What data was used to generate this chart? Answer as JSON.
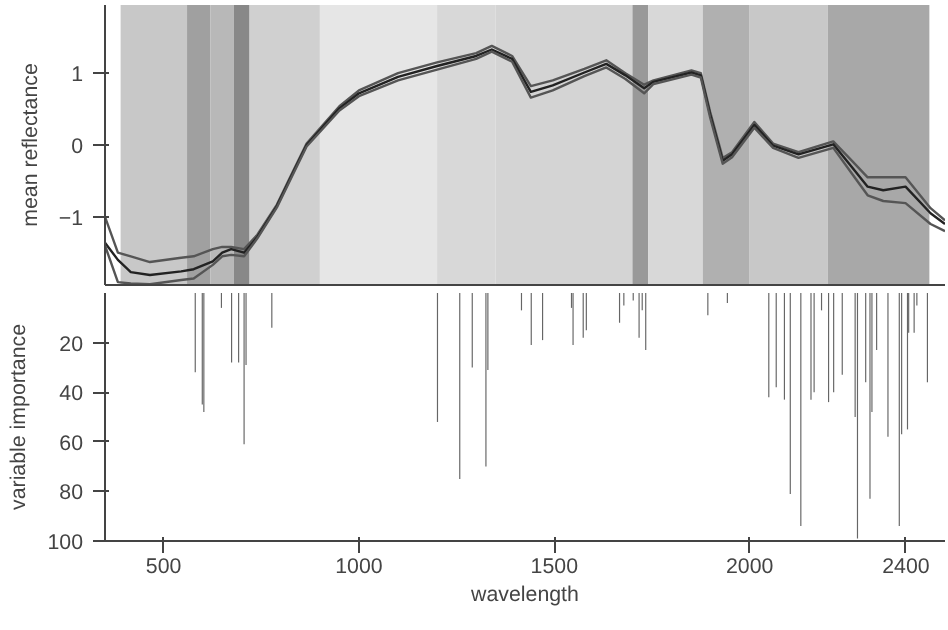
{
  "chart_data": [
    {
      "type": "line",
      "ylabel": "mean reflectance",
      "xlim": [
        350,
        2500
      ],
      "ylim": [
        -1.95,
        1.95
      ],
      "yticks": [
        -1,
        0,
        1
      ],
      "tick_labels": "y",
      "grid": false,
      "x": [
        350,
        383,
        416,
        465,
        545,
        577,
        626,
        650,
        673,
        706,
        740,
        790,
        830,
        866,
        950,
        1000,
        1100,
        1200,
        1300,
        1340,
        1392,
        1440,
        1496,
        1577,
        1633,
        1682,
        1730,
        1754,
        1851,
        1875,
        1899,
        1931,
        1955,
        2012,
        2060,
        2125,
        2214,
        2262,
        2302,
        2342,
        2399,
        2463,
        2500
      ],
      "series": [
        {
          "color": "#555555",
          "values": [
            -1.0,
            -1.5,
            -1.55,
            -1.63,
            -1.57,
            -1.55,
            -1.45,
            -1.42,
            -1.42,
            -1.45,
            -1.25,
            -0.83,
            -0.38,
            0.02,
            0.54,
            0.76,
            1.0,
            1.15,
            1.28,
            1.38,
            1.24,
            0.82,
            0.9,
            1.06,
            1.18,
            1.0,
            0.84,
            0.9,
            1.04,
            1.0,
            0.46,
            -0.18,
            -0.1,
            0.32,
            0.02,
            -0.1,
            0.05,
            -0.22,
            -0.45,
            -0.45,
            -0.45,
            -0.88,
            -1.05
          ]
        },
        {
          "color": "#222222",
          "values": [
            -1.36,
            -1.6,
            -1.77,
            -1.81,
            -1.76,
            -1.73,
            -1.62,
            -1.5,
            -1.45,
            -1.5,
            -1.28,
            -0.85,
            -0.4,
            0,
            0.51,
            0.72,
            0.95,
            1.1,
            1.24,
            1.33,
            1.2,
            0.74,
            0.83,
            1.01,
            1.13,
            0.97,
            0.79,
            0.88,
            1.01,
            0.97,
            0.42,
            -0.22,
            -0.13,
            0.28,
            -0.01,
            -0.13,
            0.01,
            -0.31,
            -0.58,
            -0.63,
            -0.58,
            -0.95,
            -1.1
          ]
        },
        {
          "color": "#555555",
          "values": [
            -1.4,
            -1.91,
            -1.93,
            -1.94,
            -1.88,
            -1.86,
            -1.67,
            -1.55,
            -1.53,
            -1.55,
            -1.3,
            -0.87,
            -0.42,
            -0.02,
            0.48,
            0.68,
            0.9,
            1.05,
            1.2,
            1.3,
            1.16,
            0.66,
            0.76,
            0.96,
            1.08,
            0.92,
            0.72,
            0.85,
            0.98,
            0.94,
            0.38,
            -0.26,
            -0.17,
            0.24,
            -0.04,
            -0.18,
            -0.04,
            -0.4,
            -0.7,
            -0.78,
            -0.81,
            -1.1,
            -1.2
          ]
        }
      ],
      "bands": [
        {
          "axis": "x",
          "from": 390,
          "to": 560,
          "color": "#c8c8c8"
        },
        {
          "axis": "x",
          "from": 560,
          "to": 620,
          "color": "#a0a0a0"
        },
        {
          "axis": "x",
          "from": 620,
          "to": 680,
          "color": "#b8b8b8"
        },
        {
          "axis": "x",
          "from": 680,
          "to": 720,
          "color": "#888888"
        },
        {
          "axis": "x",
          "from": 720,
          "to": 900,
          "color": "#d0d0d0"
        },
        {
          "axis": "x",
          "from": 900,
          "to": 1200,
          "color": "#e6e6e6"
        },
        {
          "axis": "x",
          "from": 1200,
          "to": 1350,
          "color": "#d8d8d8"
        },
        {
          "axis": "x",
          "from": 1350,
          "to": 1700,
          "color": "#d4d4d4"
        },
        {
          "axis": "x",
          "from": 1700,
          "to": 1740,
          "color": "#999999"
        },
        {
          "axis": "x",
          "from": 1740,
          "to": 1880,
          "color": "#d8d8d8"
        },
        {
          "axis": "x",
          "from": 1880,
          "to": 2000,
          "color": "#b0b0b0"
        },
        {
          "axis": "x",
          "from": 2000,
          "to": 2200,
          "color": "#c8c8c8"
        },
        {
          "axis": "x",
          "from": 2200,
          "to": 2460,
          "color": "#a8a8a8"
        }
      ]
    },
    {
      "type": "bar",
      "xlabel": "wavelength",
      "ylabel": "variable importance",
      "xlim": [
        350,
        2500
      ],
      "ylim": [
        100,
        0
      ],
      "xticks": [
        500,
        1000,
        1500,
        2000,
        2400
      ],
      "yticks": [
        20,
        40,
        60,
        80,
        100
      ],
      "grid": false,
      "color": "#666666",
      "x": [
        581,
        599,
        603,
        648,
        674,
        692,
        706,
        711,
        777,
        1201,
        1258,
        1290,
        1325,
        1330,
        1416,
        1441,
        1470,
        1544,
        1548,
        1574,
        1582,
        1667,
        1678,
        1702,
        1717,
        1725,
        1734,
        1893,
        1943,
        2049,
        2068,
        2089,
        2104,
        2131,
        2157,
        2165,
        2184,
        2202,
        2215,
        2237,
        2270,
        2276,
        2297,
        2308,
        2313,
        2325,
        2354,
        2383,
        2389,
        2404,
        2407,
        2421,
        2428,
        2455
      ],
      "values": [
        32,
        45,
        48,
        6,
        28,
        28,
        61,
        29,
        14,
        52,
        75,
        30,
        70,
        31,
        7,
        21,
        19,
        6,
        21,
        18,
        15,
        12,
        5,
        3,
        18,
        7,
        23,
        9,
        4,
        42,
        38,
        43,
        81,
        94,
        43,
        40,
        7,
        44,
        40,
        33,
        50,
        99,
        36,
        83,
        48,
        23,
        58,
        94,
        57,
        55,
        16,
        16,
        5,
        36
      ]
    }
  ]
}
